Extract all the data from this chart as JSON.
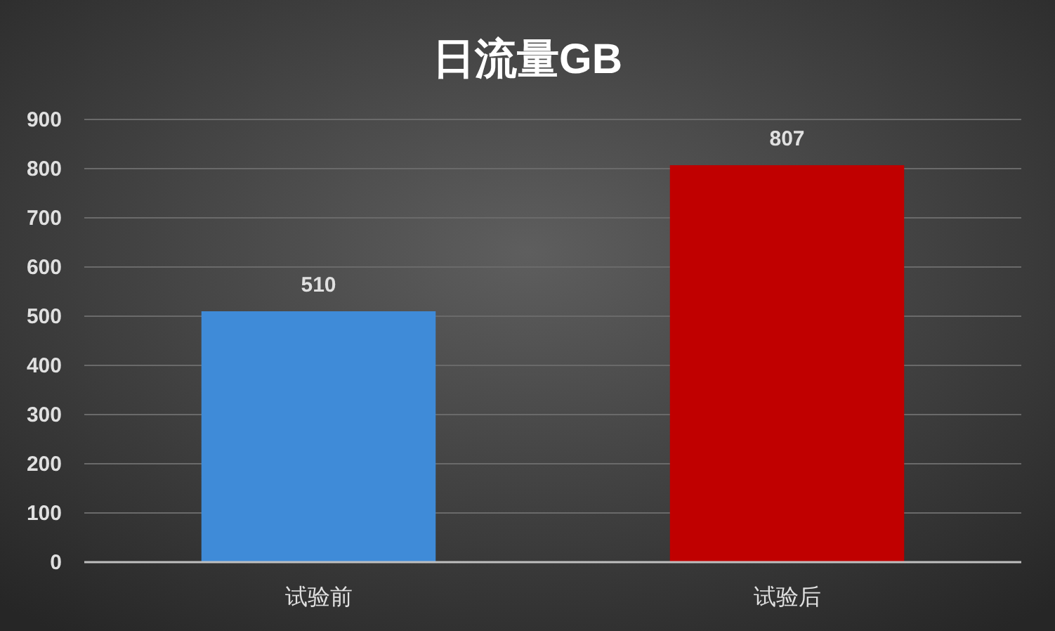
{
  "chart_data": {
    "type": "bar",
    "title": "日流量GB",
    "categories": [
      "试验前",
      "试验后"
    ],
    "values": [
      510,
      807
    ],
    "colors": [
      "#3f8bd8",
      "#c00000"
    ],
    "ylim": [
      0,
      900
    ],
    "yticks": [
      0,
      100,
      200,
      300,
      400,
      500,
      600,
      700,
      800,
      900
    ],
    "grid": "y",
    "data_labels": true,
    "legend": false
  }
}
